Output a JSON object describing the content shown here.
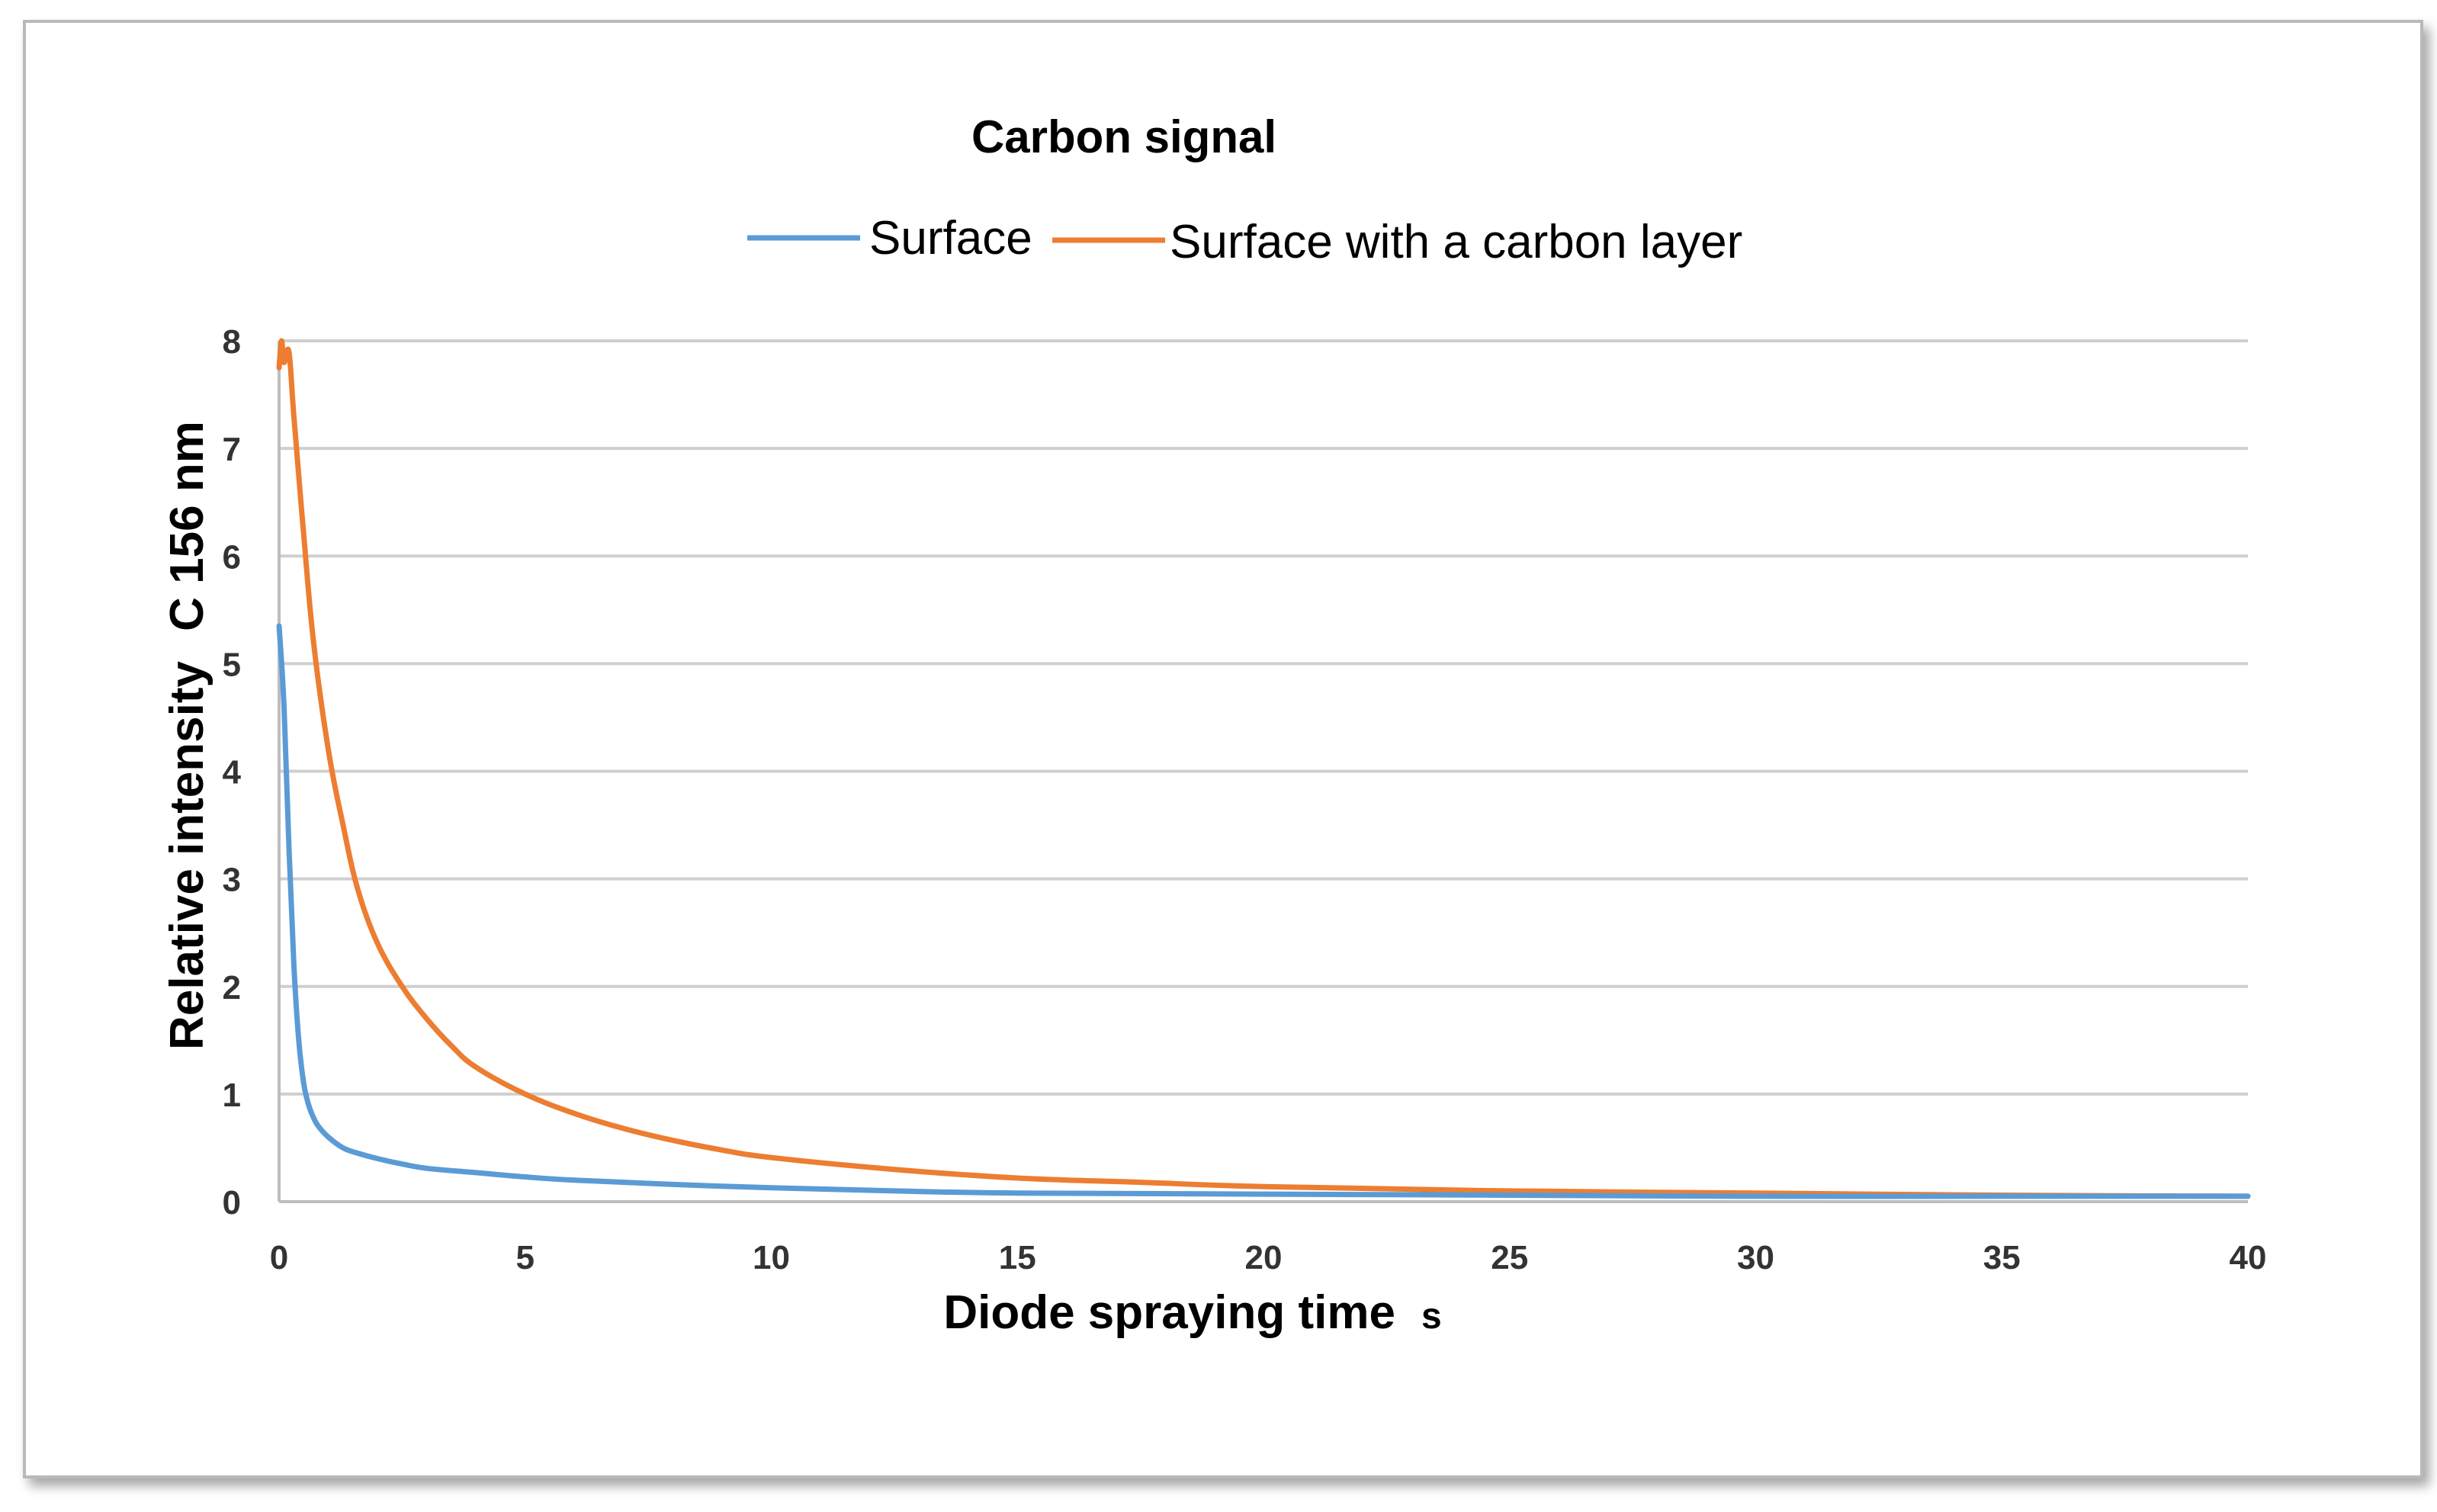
{
  "chart_data": {
    "type": "line",
    "title": "Carbon signal",
    "xlabel": "Diode spraying time",
    "xlabel_unit": "s",
    "ylabel": "Relative intensity",
    "ylabel_unit": "C 156 nm",
    "xlim": [
      0,
      40
    ],
    "ylim": [
      0,
      8
    ],
    "xticks": [
      "0",
      "5",
      "10",
      "15",
      "20",
      "25",
      "30",
      "35",
      "40"
    ],
    "yticks": [
      "0",
      "1",
      "2",
      "3",
      "4",
      "5",
      "6",
      "7",
      "8"
    ],
    "grid": "horizontal",
    "legend_position": "top",
    "series": [
      {
        "name": "Surface",
        "color": "#5B9BD5",
        "x": [
          0.0,
          0.1,
          0.2,
          0.3,
          0.4,
          0.5,
          0.6,
          0.7,
          0.8,
          1.0,
          1.3,
          1.6,
          2.0,
          2.5,
          3.0,
          4.0,
          5.0,
          6.0,
          8.0,
          10.0,
          12.5,
          15.0,
          20.0,
          25.0,
          30.0,
          35.0,
          40.0
        ],
        "y": [
          5.35,
          4.6,
          3.3,
          2.2,
          1.5,
          1.1,
          0.9,
          0.78,
          0.7,
          0.6,
          0.5,
          0.45,
          0.4,
          0.35,
          0.31,
          0.27,
          0.23,
          0.2,
          0.16,
          0.13,
          0.1,
          0.08,
          0.07,
          0.06,
          0.05,
          0.05,
          0.05
        ]
      },
      {
        "name": "Surface with a carbon layer",
        "color": "#ED7D31",
        "x": [
          0.0,
          0.05,
          0.1,
          0.2,
          0.3,
          0.5,
          0.7,
          1.0,
          1.3,
          1.6,
          2.0,
          2.5,
          3.0,
          3.5,
          4.0,
          5.0,
          6.0,
          7.0,
          8.0,
          9.0,
          10.0,
          12.5,
          15.0,
          17.5,
          20.0,
          25.0,
          30.0,
          35.0,
          40.0
        ],
        "y": [
          7.75,
          8.0,
          7.8,
          7.9,
          7.3,
          6.2,
          5.2,
          4.2,
          3.5,
          2.9,
          2.4,
          2.0,
          1.7,
          1.45,
          1.25,
          1.0,
          0.82,
          0.68,
          0.57,
          0.48,
          0.41,
          0.3,
          0.22,
          0.18,
          0.14,
          0.1,
          0.08,
          0.06,
          0.05
        ]
      }
    ]
  }
}
